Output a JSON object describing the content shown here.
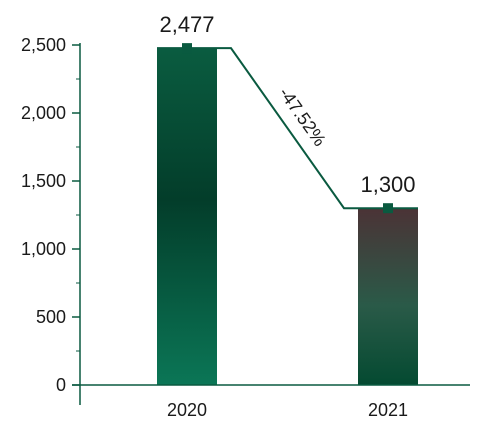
{
  "chart_data": {
    "type": "bar",
    "categories": [
      "2020",
      "2021"
    ],
    "values": [
      2477,
      1300
    ],
    "value_labels": [
      "2,477",
      "1,300"
    ],
    "change_label": "-47.52%",
    "ylim": [
      0,
      2500
    ],
    "yticks": [
      0,
      500,
      1000,
      1500,
      2000,
      2500
    ],
    "ytick_labels": [
      "0",
      "500",
      "1,000",
      "1,500",
      "2,000",
      "2,500"
    ],
    "grid": false,
    "colors": {
      "bar_2020_top": "#0a5c40",
      "bar_2020_mid": "#033d2a",
      "bar_2020_bottom": "#0b7656",
      "bar_2021_top": "#4b3336",
      "bar_2021_mid": "#2a5a48",
      "bar_2021_bottom": "#044a31",
      "axis": "#0a5a40",
      "connector": "#0a5a40",
      "marker": "#0a5a40"
    }
  }
}
